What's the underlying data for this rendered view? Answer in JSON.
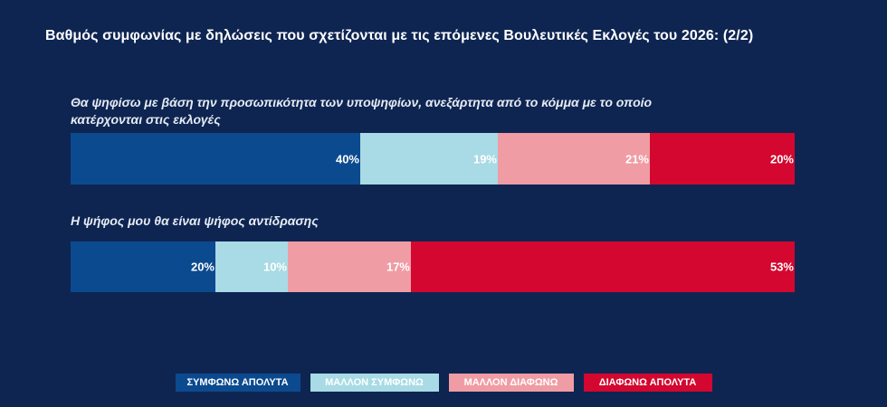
{
  "title": "Βαθμός συμφωνίας με δηλώσεις που σχετίζονται με τις επόμενες Βουλευτικές Εκλογές του 2026: (2/2)",
  "colors": {
    "background": "#0e2552",
    "symfono_apolyta": "#0c4a8f",
    "mallon_symfono": "#a8dbe5",
    "mallon_diafono": "#f09ca4",
    "diafono_apolyta": "#d3072f"
  },
  "chart_data": {
    "type": "bar",
    "orientation": "horizontal",
    "stacked": true,
    "percent_stacked": true,
    "title": "Βαθμός συμφωνίας με δηλώσεις που σχετίζονται με τις επόμενες Βουλευτικές Εκλογές του 2026: (2/2)",
    "categories": [
      "Θα ψηφίσω με βάση την προσωπικότητα των υποψηφίων, ανεξάρτητα από το κόμμα με το οποίο κατέρχονται στις εκλογές",
      "Η ψήφος μου θα είναι ψήφος αντίδρασης"
    ],
    "series": [
      {
        "name": "ΣΥΜΦΩΝΩ ΑΠΟΛΥΤΑ",
        "values": [
          40,
          20
        ],
        "labels": [
          "40%",
          "20%"
        ],
        "color": "#0c4a8f"
      },
      {
        "name": "ΜΑΛΛΟΝ ΣΥΜΦΩΝΩ",
        "values": [
          19,
          10
        ],
        "labels": [
          "19%",
          "10%"
        ],
        "color": "#a8dbe5"
      },
      {
        "name": "ΜΑΛΛΟΝ ΔΙΑΦΩΝΩ",
        "values": [
          21,
          17
        ],
        "labels": [
          "21%",
          "17%"
        ],
        "color": "#f09ca4"
      },
      {
        "name": "ΔΙΑΦΩΝΩ ΑΠΟΛΥΤΑ",
        "values": [
          20,
          53
        ],
        "labels": [
          "20%",
          "53%"
        ],
        "color": "#d3072f"
      }
    ],
    "xlim": [
      0,
      100
    ],
    "grid": false,
    "legend_position": "bottom"
  }
}
